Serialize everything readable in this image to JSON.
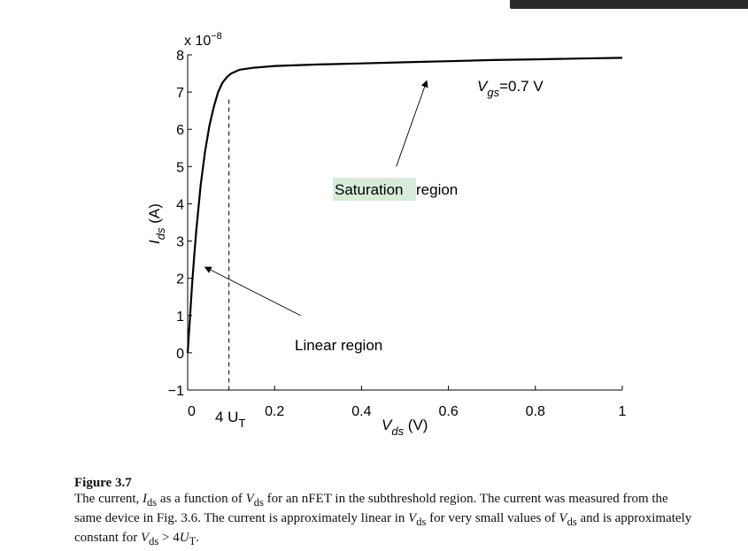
{
  "chart_data": {
    "type": "line",
    "xlim": [
      0,
      1
    ],
    "ylim": [
      -1,
      8
    ],
    "x_ticks": [
      0,
      0.2,
      0.4,
      0.6,
      0.8,
      1
    ],
    "x_tick_labels": [
      "0",
      "0.2",
      "0.4",
      "0.6",
      "0.8",
      "1"
    ],
    "y_ticks": [
      -1,
      0,
      1,
      2,
      3,
      4,
      5,
      6,
      7,
      8
    ],
    "y_tick_labels": [
      "−1",
      "0",
      "1",
      "2",
      "3",
      "4",
      "5",
      "6",
      "7",
      "8"
    ],
    "y_multiplier": "x 10",
    "y_multiplier_exp": "−8",
    "grid": false,
    "series": [
      {
        "x": [
          0,
          0.005,
          0.01,
          0.015,
          0.02,
          0.03,
          0.04,
          0.05,
          0.06,
          0.07,
          0.08,
          0.09,
          0.1,
          0.12,
          0.15,
          0.2,
          0.3,
          0.4,
          0.5,
          0.6,
          0.7,
          0.8,
          0.9,
          1.0
        ],
        "y": [
          0,
          0.9,
          1.8,
          2.6,
          3.3,
          4.5,
          5.4,
          6.1,
          6.6,
          7.0,
          7.25,
          7.4,
          7.5,
          7.6,
          7.65,
          7.7,
          7.74,
          7.77,
          7.8,
          7.83,
          7.86,
          7.88,
          7.9,
          7.92
        ]
      }
    ],
    "dashed_marker": {
      "x": 0.095,
      "y_bottom": -1,
      "y_top": 6.8
    },
    "annotations": {
      "vgs_main": "V",
      "vgs_sub": "gs",
      "vgs_value": "=0.7 V",
      "saturation_highlight": "Saturation",
      "saturation_rest": " region",
      "linear": "Linear region",
      "ut_prefix": "4 U",
      "ut_sub": "T"
    },
    "arrows": {
      "saturation": {
        "from": [
          0.48,
          5.0
        ],
        "to": [
          0.55,
          7.3
        ]
      },
      "linear": {
        "from": [
          0.26,
          1.0
        ],
        "to": [
          0.04,
          2.3
        ]
      }
    },
    "xlabel_main": "V",
    "xlabel_sub": "ds",
    "xlabel_unit": " (V)",
    "ylabel_main": "I",
    "ylabel_sub": "ds",
    "ylabel_unit": " (A)"
  },
  "caption": {
    "title": "Figure 3.7",
    "l1_a": "The current, ",
    "v_ids": "I",
    "sub_ds": "ds",
    "l1_b": " as a function of ",
    "v_vds": "V",
    "l1_c": " for an nFET in the subthreshold region. The current was",
    "l2": "measured from the same device in Fig. 3.6. The current is approximately linear in ",
    "l2_b": " for very",
    "l3_a": "small values of ",
    "l3_b": " and is approximately constant for ",
    "l3_c": " > 4",
    "v_u": "U",
    "sub_t": "T",
    "l3_d": "."
  },
  "colors": {
    "highlight": "#d6ecd8",
    "line": "#000000"
  }
}
